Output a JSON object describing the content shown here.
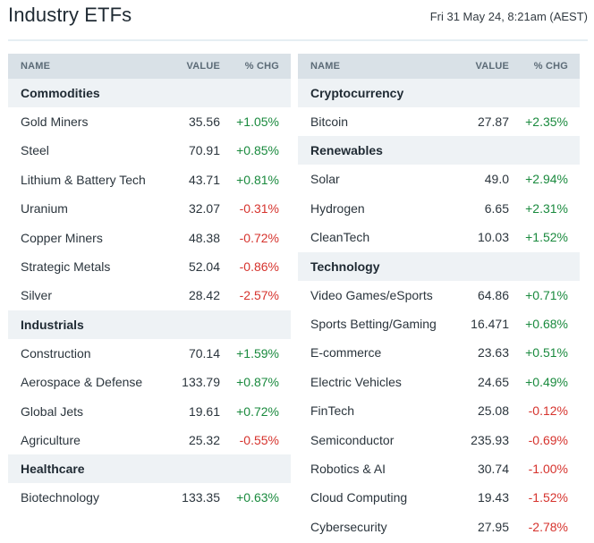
{
  "header": {
    "title": "Industry ETFs",
    "timestamp": "Fri 31 May 24, 8:21am (AEST)"
  },
  "columns": {
    "name": "NAME",
    "value": "VALUE",
    "chg": "% CHG"
  },
  "left_panel": {
    "commodities": {
      "label": "Commodities",
      "rows": [
        {
          "name": "Gold Miners",
          "value": "35.56",
          "chg": "+1.05%"
        },
        {
          "name": "Steel",
          "value": "70.91",
          "chg": "+0.85%"
        },
        {
          "name": "Lithium & Battery Tech",
          "value": "43.71",
          "chg": "+0.81%"
        },
        {
          "name": "Uranium",
          "value": "32.07",
          "chg": "-0.31%"
        },
        {
          "name": "Copper Miners",
          "value": "48.38",
          "chg": "-0.72%"
        },
        {
          "name": "Strategic Metals",
          "value": "52.04",
          "chg": "-0.86%"
        },
        {
          "name": "Silver",
          "value": "28.42",
          "chg": "-2.57%"
        }
      ]
    },
    "industrials": {
      "label": "Industrials",
      "rows": [
        {
          "name": "Construction",
          "value": "70.14",
          "chg": "+1.59%"
        },
        {
          "name": "Aerospace & Defense",
          "value": "133.79",
          "chg": "+0.87%"
        },
        {
          "name": "Global Jets",
          "value": "19.61",
          "chg": "+0.72%"
        },
        {
          "name": "Agriculture",
          "value": "25.32",
          "chg": "-0.55%"
        }
      ]
    },
    "healthcare": {
      "label": "Healthcare",
      "rows": [
        {
          "name": "Biotechnology",
          "value": "133.35",
          "chg": "+0.63%"
        }
      ]
    }
  },
  "right_panel": {
    "cryptocurrency": {
      "label": "Cryptocurrency",
      "rows": [
        {
          "name": "Bitcoin",
          "value": "27.87",
          "chg": "+2.35%"
        }
      ]
    },
    "renewables": {
      "label": "Renewables",
      "rows": [
        {
          "name": "Solar",
          "value": "49.0",
          "chg": "+2.94%"
        },
        {
          "name": "Hydrogen",
          "value": "6.65",
          "chg": "+2.31%"
        },
        {
          "name": "CleanTech",
          "value": "10.03",
          "chg": "+1.52%"
        }
      ]
    },
    "technology": {
      "label": "Technology",
      "rows": [
        {
          "name": "Video Games/eSports",
          "value": "64.86",
          "chg": "+0.71%"
        },
        {
          "name": "Sports Betting/Gaming",
          "value": "16.471",
          "chg": "+0.68%"
        },
        {
          "name": "E-commerce",
          "value": "23.63",
          "chg": "+0.51%"
        },
        {
          "name": "Electric Vehicles",
          "value": "24.65",
          "chg": "+0.49%"
        },
        {
          "name": "FinTech",
          "value": "25.08",
          "chg": "-0.12%"
        },
        {
          "name": "Semiconductor",
          "value": "235.93",
          "chg": "-0.69%"
        },
        {
          "name": "Robotics & AI",
          "value": "30.74",
          "chg": "-1.00%"
        },
        {
          "name": "Cloud Computing",
          "value": "19.43",
          "chg": "-1.52%"
        },
        {
          "name": "Cybersecurity",
          "value": "27.95",
          "chg": "-2.78%"
        }
      ]
    }
  },
  "colors": {
    "positive": "#1a8a3e",
    "negative": "#d6332d",
    "header_bg": "#d9e1e7",
    "section_bg": "#eef2f5"
  }
}
